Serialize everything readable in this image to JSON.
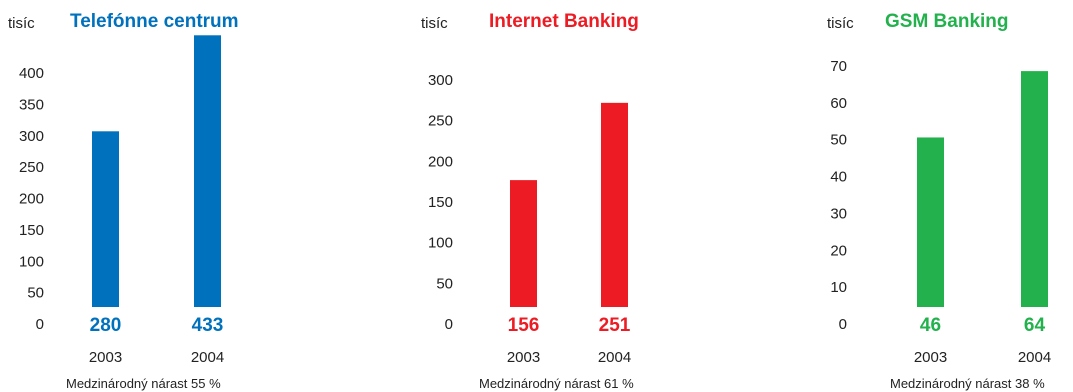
{
  "chart_data": [
    {
      "type": "bar",
      "unit_label": "tisíc",
      "title": "Telefónne centrum",
      "color": "#0071bc",
      "categories": [
        "2003",
        "2004"
      ],
      "values": [
        280,
        433
      ],
      "value_labels": [
        "280",
        "433"
      ],
      "yticks": [
        "0",
        "50",
        "100",
        "150",
        "200",
        "250",
        "300",
        "350",
        "400"
      ],
      "note": "Medzinárodný nárast 55 %"
    },
    {
      "type": "bar",
      "unit_label": "tisíc",
      "title": "Internet Banking",
      "color": "#ed1c24",
      "categories": [
        "2003",
        "2004"
      ],
      "values": [
        156,
        251
      ],
      "value_labels": [
        "156",
        "251"
      ],
      "yticks": [
        "0",
        "50",
        "100",
        "150",
        "200",
        "250",
        "300"
      ],
      "note": "Medzinárodný nárast 61 %"
    },
    {
      "type": "bar",
      "unit_label": "tisíc",
      "title": "GSM Banking",
      "color": "#22b14c",
      "categories": [
        "2003",
        "2004"
      ],
      "values": [
        46,
        64
      ],
      "value_labels": [
        "46",
        "64"
      ],
      "yticks": [
        "0",
        "10",
        "20",
        "30",
        "40",
        "50",
        "60",
        "70"
      ],
      "note": "Medzinárodný nárast 38 %"
    }
  ]
}
